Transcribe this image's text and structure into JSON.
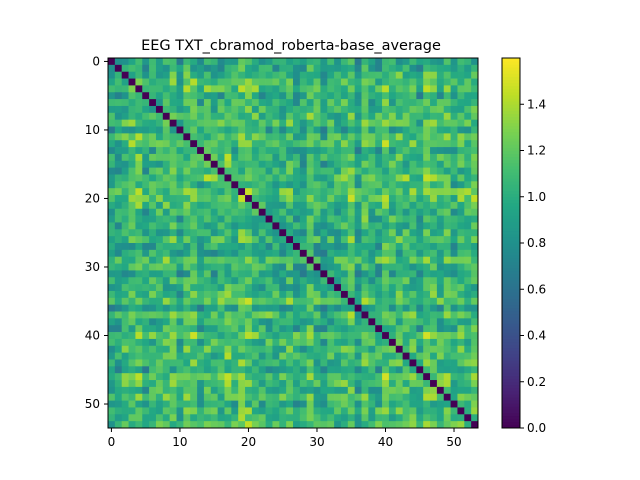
{
  "chart_data": {
    "type": "heatmap",
    "title": "EEG TXT_cbramod_roberta-base_average",
    "n": 54,
    "xlim": [
      -0.5,
      53.5
    ],
    "ylim": [
      53.5,
      -0.5
    ],
    "x_ticks": [
      0,
      10,
      20,
      30,
      40,
      50
    ],
    "y_ticks": [
      0,
      10,
      20,
      30,
      40,
      50
    ],
    "colorbar": {
      "colormap": "viridis",
      "range": [
        0.0,
        1.6
      ],
      "ticks": [
        0.0,
        0.2,
        0.4,
        0.6,
        0.8,
        1.0,
        1.2,
        1.4
      ]
    },
    "diagonal_value": 0.0,
    "off_diagonal_mean": 1.05,
    "off_diagonal_range": [
      0.65,
      1.6
    ],
    "xlabel": "",
    "ylabel": ""
  }
}
